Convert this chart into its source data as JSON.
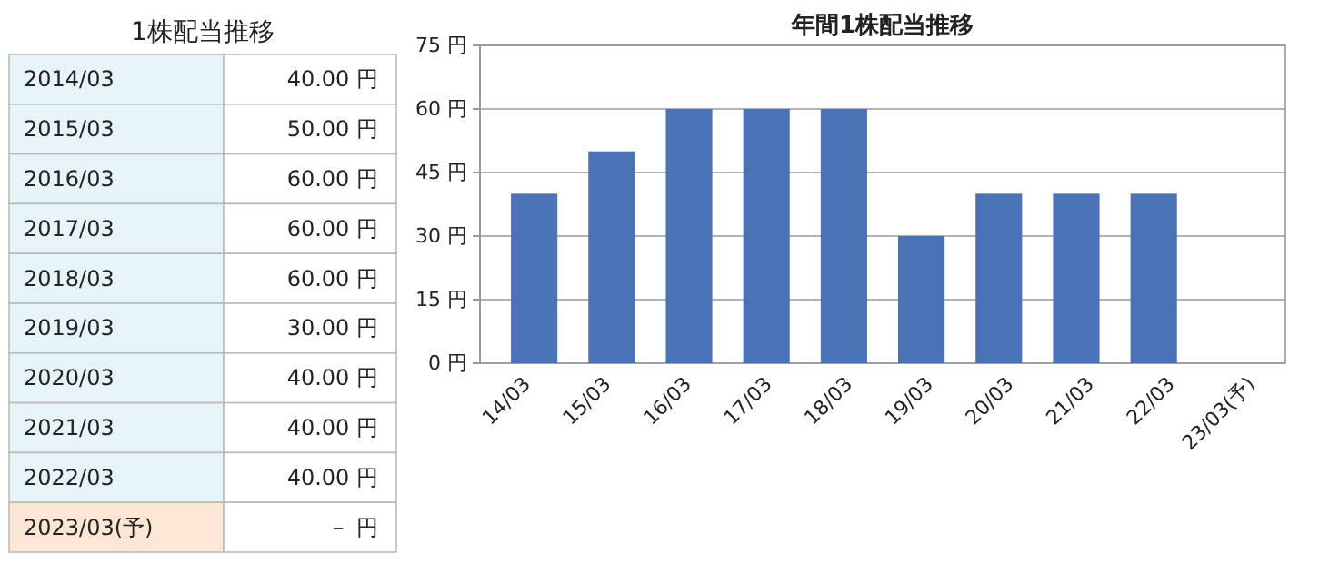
{
  "chart_data": [
    {
      "type": "other",
      "title": "1株配当推移",
      "categories": [
        "2014/03",
        "2015/03",
        "2016/03",
        "2017/03",
        "2018/03",
        "2019/03",
        "2020/03",
        "2021/03",
        "2022/03",
        "2023/03(予)"
      ],
      "value_labels": [
        "40.00 円",
        "50.00 円",
        "60.00 円",
        "60.00 円",
        "60.00 円",
        "30.00 円",
        "40.00 円",
        "40.00 円",
        "40.00 円",
        "－ 円"
      ],
      "colors": [
        "#e6f3f9",
        "#e6f3f9",
        "#e6f3f9",
        "#e6f3f9",
        "#e6f3f9",
        "#e6f3f9",
        "#e6f3f9",
        "#e6f3f9",
        "#e6f3f9",
        "#fde6d3"
      ]
    },
    {
      "type": "bar",
      "title": "年間1株配当推移",
      "categories": [
        "14/03",
        "15/03",
        "16/03",
        "17/03",
        "18/03",
        "19/03",
        "20/03",
        "21/03",
        "22/03",
        "23/03(予)"
      ],
      "values": [
        40,
        50,
        60,
        60,
        60,
        30,
        40,
        40,
        40,
        null
      ],
      "color": "#4a72b6",
      "ylim": [
        0,
        75
      ],
      "yticks": [
        {
          "value": 0,
          "label": "0 円"
        },
        {
          "value": 15,
          "label": "15 円"
        },
        {
          "value": 30,
          "label": "30 円"
        },
        {
          "value": 45,
          "label": "45 円"
        },
        {
          "value": 60,
          "label": "60 円"
        },
        {
          "value": 75,
          "label": "75 円"
        }
      ],
      "grid": "y"
    }
  ]
}
